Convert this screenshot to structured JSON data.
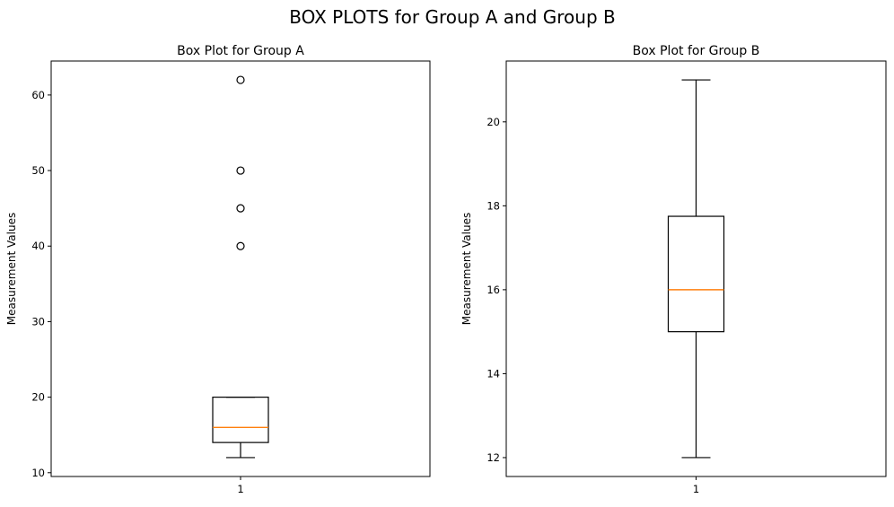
{
  "figure": {
    "suptitle": "BOX PLOTS for Group A and Group B"
  },
  "chart_data": [
    {
      "type": "box",
      "title": "Box Plot for Group A",
      "xlabel": "",
      "ylabel": "Measurement Values",
      "categories": [
        "1"
      ],
      "ylim": [
        9.5,
        64.5
      ],
      "yticks": [
        10,
        20,
        30,
        40,
        50,
        60
      ],
      "grid": false,
      "boxes": [
        {
          "whisker_low": 12,
          "q1": 14,
          "median": 16,
          "q3": 20,
          "whisker_high": 20,
          "outliers": [
            40,
            45,
            50,
            62
          ]
        }
      ],
      "colors": {
        "box": "#000000",
        "median": "#ff7f0e"
      }
    },
    {
      "type": "box",
      "title": "Box Plot for Group B",
      "xlabel": "",
      "ylabel": "Measurement Values",
      "categories": [
        "1"
      ],
      "ylim": [
        11.55,
        21.45
      ],
      "yticks": [
        12,
        14,
        16,
        18,
        20
      ],
      "grid": false,
      "boxes": [
        {
          "whisker_low": 12,
          "q1": 15,
          "median": 16,
          "q3": 17.75,
          "whisker_high": 21,
          "outliers": []
        }
      ],
      "colors": {
        "box": "#000000",
        "median": "#ff7f0e"
      }
    }
  ]
}
